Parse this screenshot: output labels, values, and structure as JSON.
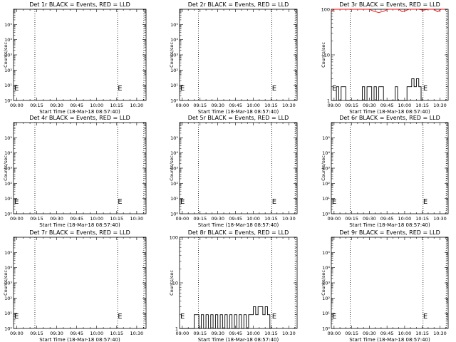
{
  "page": {
    "background": "#ffffff",
    "axis_color": "#000000",
    "events_color": "#000000",
    "lld_color": "#ff0000"
  },
  "chart_data": [
    {
      "type": "line",
      "title": "Det 1r BLACK = Events, RED = LLD",
      "scale": "log",
      "ylabel": "Counts/sec",
      "xlabel": "Start Time (18-Mar-18 08:57:40)",
      "xticks": [
        "09:00",
        "09:15",
        "09:30",
        "09:45",
        "10:00",
        "10:15",
        "10:30"
      ],
      "yticks": [
        "10⁰",
        "10¹",
        "10²",
        "10³",
        "10⁴",
        "10⁵"
      ],
      "xlim": [
        "08:57:40",
        "10:37:00"
      ],
      "ylim": [
        1,
        1000000
      ],
      "vlines": [
        "09:13:40",
        "10:15:40",
        "10:35:20"
      ],
      "marks": [
        {
          "time": "08:58:15",
          "label": "E"
        },
        {
          "time": "10:15:45",
          "label": "E"
        }
      ],
      "events": [],
      "lld": []
    },
    {
      "type": "line",
      "title": "Det 2r BLACK = Events, RED = LLD",
      "scale": "log",
      "ylabel": "Counts/sec",
      "xlabel": "Start Time (18-Mar-18 08:57:40)",
      "xticks": [
        "09:00",
        "09:15",
        "09:30",
        "09:45",
        "10:00",
        "10:15",
        "10:30"
      ],
      "yticks": [
        "10⁰",
        "10¹",
        "10²",
        "10³",
        "10⁴",
        "10⁵"
      ],
      "xlim": [
        "08:57:40",
        "10:37:00"
      ],
      "ylim": [
        1,
        1000000
      ],
      "vlines": [
        "09:13:40",
        "10:15:40",
        "10:35:20"
      ],
      "marks": [
        {
          "time": "08:58:15",
          "label": "E"
        },
        {
          "time": "10:15:45",
          "label": "E"
        }
      ],
      "events": [],
      "lld": []
    },
    {
      "type": "line",
      "title": "Det 3r BLACK = Events, RED = LLD",
      "scale": "log",
      "ylabel": "Counts/sec",
      "xlabel": "Start Time (18-Mar-18 08:57:40)",
      "xticks": [
        "09:00",
        "09:15",
        "09:30",
        "09:45",
        "10:00",
        "10:15",
        "10:30"
      ],
      "yticks": [
        "1",
        "10",
        "100"
      ],
      "xlim": [
        "08:57:40",
        "10:37:00"
      ],
      "ylim": [
        1,
        100
      ],
      "vlines": [
        "09:13:40",
        "10:15:40",
        "10:35:20"
      ],
      "marks": [
        {
          "time": "08:58:15",
          "label": "E"
        },
        {
          "time": "10:15:45",
          "label": "E"
        }
      ],
      "events": [
        {
          "time": "08:57:40",
          "value": 0
        },
        {
          "time": "09:02:00",
          "value": 2
        },
        {
          "time": "09:04:00",
          "value": 1
        },
        {
          "time": "09:06:00",
          "value": 2
        },
        {
          "time": "09:08:00",
          "value": 2
        },
        {
          "time": "09:10:00",
          "value": 1
        },
        {
          "time": "09:13:40",
          "value": 0
        },
        {
          "time": "09:24:00",
          "value": 2
        },
        {
          "time": "09:26:00",
          "value": 1
        },
        {
          "time": "09:28:00",
          "value": 2
        },
        {
          "time": "09:30:00",
          "value": 2
        },
        {
          "time": "09:32:00",
          "value": 1
        },
        {
          "time": "09:34:00",
          "value": 2
        },
        {
          "time": "09:36:00",
          "value": 1
        },
        {
          "time": "09:38:00",
          "value": 2
        },
        {
          "time": "09:40:00",
          "value": 2
        },
        {
          "time": "09:42:00",
          "value": 1
        },
        {
          "time": "09:45:00",
          "value": 0
        },
        {
          "time": "09:52:00",
          "value": 2
        },
        {
          "time": "09:54:00",
          "value": 1
        },
        {
          "time": "09:58:00",
          "value": 0
        },
        {
          "time": "10:02:00",
          "value": 2
        },
        {
          "time": "10:04:00",
          "value": 2
        },
        {
          "time": "10:06:00",
          "value": 3
        },
        {
          "time": "10:08:00",
          "value": 2
        },
        {
          "time": "10:10:00",
          "value": 3
        },
        {
          "time": "10:12:00",
          "value": 2
        },
        {
          "time": "10:14:00",
          "value": 1
        },
        {
          "time": "10:15:40",
          "value": 0
        }
      ],
      "lld": [
        {
          "time": "08:57:40",
          "value": 90
        },
        {
          "time": "09:00:00",
          "value": 100
        },
        {
          "time": "09:04:00",
          "value": 100
        },
        {
          "time": "09:30:00",
          "value": 100
        },
        {
          "time": "09:34:00",
          "value": 90
        },
        {
          "time": "09:38:00",
          "value": 85
        },
        {
          "time": "09:42:00",
          "value": 90
        },
        {
          "time": "09:46:00",
          "value": 100
        },
        {
          "time": "09:55:00",
          "value": 100
        },
        {
          "time": "09:58:00",
          "value": 88
        },
        {
          "time": "10:04:00",
          "value": 100
        },
        {
          "time": "10:12:00",
          "value": 100
        },
        {
          "time": "10:15:40",
          "value": 95
        },
        {
          "time": "10:20:00",
          "value": 100
        },
        {
          "time": "10:25:00",
          "value": 100
        },
        {
          "time": "10:28:00",
          "value": 88
        },
        {
          "time": "10:31:00",
          "value": 100
        },
        {
          "time": "10:34:00",
          "value": 100
        }
      ]
    },
    {
      "type": "line",
      "title": "Det 4r BLACK = Events, RED = LLD",
      "scale": "log",
      "ylabel": "Counts/sec",
      "xlabel": "Start Time (18-Mar-18 08:57:40)",
      "xticks": [
        "09:00",
        "09:15",
        "09:30",
        "09:45",
        "10:00",
        "10:15",
        "10:30"
      ],
      "yticks": [
        "10⁰",
        "10¹",
        "10²",
        "10³",
        "10⁴",
        "10⁵"
      ],
      "xlim": [
        "08:57:40",
        "10:37:00"
      ],
      "ylim": [
        1,
        1000000
      ],
      "vlines": [
        "09:13:40",
        "10:15:40",
        "10:35:20"
      ],
      "marks": [
        {
          "time": "08:58:15",
          "label": "E"
        },
        {
          "time": "10:15:45",
          "label": "E"
        }
      ],
      "events": [],
      "lld": []
    },
    {
      "type": "line",
      "title": "Det 5r BLACK = Events, RED = LLD",
      "scale": "log",
      "ylabel": "Counts/sec",
      "xlabel": "Start Time (18-Mar-18 08:57:40)",
      "xticks": [
        "09:00",
        "09:15",
        "09:30",
        "09:45",
        "10:00",
        "10:15",
        "10:30"
      ],
      "yticks": [
        "10⁰",
        "10¹",
        "10²",
        "10³",
        "10⁴",
        "10⁵"
      ],
      "xlim": [
        "08:57:40",
        "10:37:00"
      ],
      "ylim": [
        1,
        1000000
      ],
      "vlines": [
        "09:13:40",
        "10:15:40",
        "10:35:20"
      ],
      "marks": [
        {
          "time": "08:58:15",
          "label": "E"
        },
        {
          "time": "10:15:45",
          "label": "E"
        }
      ],
      "events": [],
      "lld": []
    },
    {
      "type": "line",
      "title": "Det 6r BLACK = Events, RED = LLD",
      "scale": "log",
      "ylabel": "Counts/sec",
      "xlabel": "Start Time (18-Mar-18 08:57:40)",
      "xticks": [
        "09:00",
        "09:15",
        "09:30",
        "09:45",
        "10:00",
        "10:15",
        "10:30"
      ],
      "yticks": [
        "10⁰",
        "10¹",
        "10²",
        "10³",
        "10⁴",
        "10⁵"
      ],
      "xlim": [
        "08:57:40",
        "10:37:00"
      ],
      "ylim": [
        1,
        1000000
      ],
      "vlines": [
        "09:13:40",
        "10:15:40",
        "10:35:20"
      ],
      "marks": [
        {
          "time": "08:58:15",
          "label": "E"
        },
        {
          "time": "10:15:45",
          "label": "E"
        }
      ],
      "events": [],
      "lld": []
    },
    {
      "type": "line",
      "title": "Det 7r BLACK = Events, RED = LLD",
      "scale": "log",
      "ylabel": "Counts/sec",
      "xlabel": "Start Time (18-Mar-18 08:57:40)",
      "xticks": [
        "09:00",
        "09:15",
        "09:30",
        "09:45",
        "10:00",
        "10:15",
        "10:30"
      ],
      "yticks": [
        "10⁰",
        "10¹",
        "10²",
        "10³",
        "10⁴",
        "10⁵"
      ],
      "xlim": [
        "08:57:40",
        "10:37:00"
      ],
      "ylim": [
        1,
        1000000
      ],
      "vlines": [
        "09:13:40",
        "10:15:40",
        "10:35:20"
      ],
      "marks": [
        {
          "time": "08:58:15",
          "label": "E"
        },
        {
          "time": "10:15:45",
          "label": "E"
        }
      ],
      "events": [],
      "lld": []
    },
    {
      "type": "line",
      "title": "Det 8r BLACK = Events, RED = LLD",
      "scale": "log",
      "ylabel": "Counts/sec",
      "xlabel": "Start Time (18-Mar-18 08:57:40)",
      "xticks": [
        "09:00",
        "09:15",
        "09:30",
        "09:45",
        "10:00",
        "10:15",
        "10:30"
      ],
      "yticks": [
        "1",
        "10",
        "100"
      ],
      "xlim": [
        "08:57:40",
        "10:37:00"
      ],
      "ylim": [
        1,
        100
      ],
      "vlines": [
        "09:13:40",
        "10:15:40",
        "10:35:20"
      ],
      "marks": [
        {
          "time": "08:58:15",
          "label": "E"
        },
        {
          "time": "10:15:45",
          "label": "E"
        }
      ],
      "events": [
        {
          "time": "08:57:40",
          "value": 0
        },
        {
          "time": "09:10:00",
          "value": 2
        },
        {
          "time": "09:12:00",
          "value": 2
        },
        {
          "time": "09:14:00",
          "value": 1
        },
        {
          "time": "09:16:00",
          "value": 2
        },
        {
          "time": "09:18:00",
          "value": 1
        },
        {
          "time": "09:20:00",
          "value": 2
        },
        {
          "time": "09:22:00",
          "value": 1
        },
        {
          "time": "09:24:00",
          "value": 2
        },
        {
          "time": "09:26:00",
          "value": 1
        },
        {
          "time": "09:28:00",
          "value": 2
        },
        {
          "time": "09:30:00",
          "value": 1
        },
        {
          "time": "09:32:00",
          "value": 2
        },
        {
          "time": "09:34:00",
          "value": 1
        },
        {
          "time": "09:36:00",
          "value": 2
        },
        {
          "time": "09:38:00",
          "value": 1
        },
        {
          "time": "09:40:00",
          "value": 2
        },
        {
          "time": "09:42:00",
          "value": 1
        },
        {
          "time": "09:44:00",
          "value": 2
        },
        {
          "time": "09:46:00",
          "value": 1
        },
        {
          "time": "09:48:00",
          "value": 2
        },
        {
          "time": "09:50:00",
          "value": 1
        },
        {
          "time": "09:52:00",
          "value": 2
        },
        {
          "time": "09:54:00",
          "value": 1
        },
        {
          "time": "09:56:00",
          "value": 2
        },
        {
          "time": "09:58:00",
          "value": 2
        },
        {
          "time": "10:00:00",
          "value": 3
        },
        {
          "time": "10:02:00",
          "value": 2
        },
        {
          "time": "10:04:00",
          "value": 3
        },
        {
          "time": "10:06:00",
          "value": 3
        },
        {
          "time": "10:08:00",
          "value": 2
        },
        {
          "time": "10:10:00",
          "value": 3
        },
        {
          "time": "10:12:00",
          "value": 2
        },
        {
          "time": "10:14:00",
          "value": 1
        },
        {
          "time": "10:15:40",
          "value": 0
        }
      ],
      "lld": []
    },
    {
      "type": "line",
      "title": "Det 9r BLACK = Events, RED = LLD",
      "scale": "log",
      "ylabel": "Counts/sec",
      "xlabel": "Start Time (18-Mar-18 08:57:40)",
      "xticks": [
        "09:00",
        "09:15",
        "09:30",
        "09:45",
        "10:00",
        "10:15",
        "10:30"
      ],
      "yticks": [
        "10⁰",
        "10¹",
        "10²",
        "10³",
        "10⁴",
        "10⁵"
      ],
      "xlim": [
        "08:57:40",
        "10:37:00"
      ],
      "ylim": [
        1,
        1000000
      ],
      "vlines": [
        "09:13:40",
        "10:15:40",
        "10:35:20"
      ],
      "marks": [
        {
          "time": "08:58:15",
          "label": "E"
        },
        {
          "time": "10:15:45",
          "label": "E"
        }
      ],
      "events": [],
      "lld": []
    }
  ]
}
